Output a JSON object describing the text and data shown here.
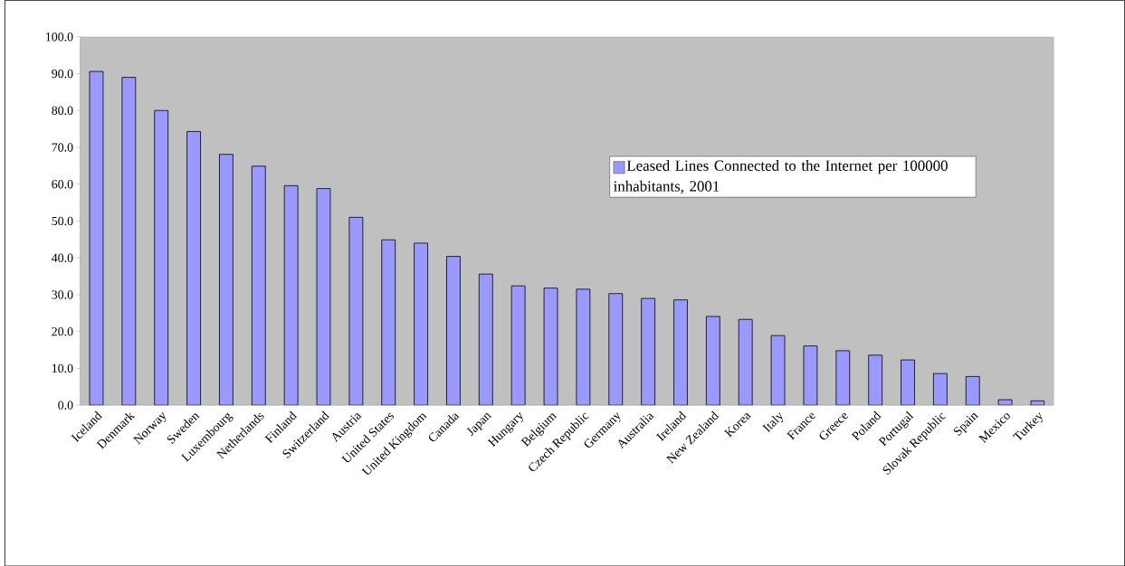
{
  "chart_data": {
    "type": "bar",
    "categories": [
      "Iceland",
      "Denmark",
      "Norway",
      "Sweden",
      "Luxembourg",
      "Netherlands",
      "Finland",
      "Switzerland",
      "Austria",
      "United States",
      "United Kingdom",
      "Canada",
      "Japan",
      "Hungary",
      "Belgium",
      "Czech Republic",
      "Germany",
      "Australia",
      "Ireland",
      "New Zealand",
      "Korea",
      "Italy",
      "France",
      "Greece",
      "Poland",
      "Portugal",
      "Slovak Republic",
      "Spain",
      "Mexico",
      "Turkey"
    ],
    "series": [
      {
        "name": "Leased Lines Connected to the Internet per 100000 inhabitants, 2001",
        "color": "#9999ff",
        "values": [
          90.6,
          89.0,
          80.0,
          74.3,
          68.1,
          64.9,
          59.6,
          58.8,
          51.0,
          44.9,
          44.0,
          40.4,
          35.6,
          32.4,
          31.8,
          31.5,
          30.3,
          29.0,
          28.6,
          24.1,
          23.3,
          18.9,
          16.1,
          14.8,
          13.6,
          12.3,
          8.6,
          7.8,
          1.5,
          1.2
        ]
      }
    ],
    "ylim": [
      0,
      100
    ],
    "yticks": [
      {
        "value": 0,
        "label": "0.0"
      },
      {
        "value": 10,
        "label": "10.0"
      },
      {
        "value": 20,
        "label": "20.0"
      },
      {
        "value": 30,
        "label": "30.0"
      },
      {
        "value": 40,
        "label": "40.0"
      },
      {
        "value": 50,
        "label": "50.0"
      },
      {
        "value": 60,
        "label": "60.0"
      },
      {
        "value": 70,
        "label": "70.0"
      },
      {
        "value": 80,
        "label": "80.0"
      },
      {
        "value": 90,
        "label": "90.0"
      },
      {
        "value": 100,
        "label": "100.0"
      }
    ],
    "legend": "right",
    "grid": false
  }
}
